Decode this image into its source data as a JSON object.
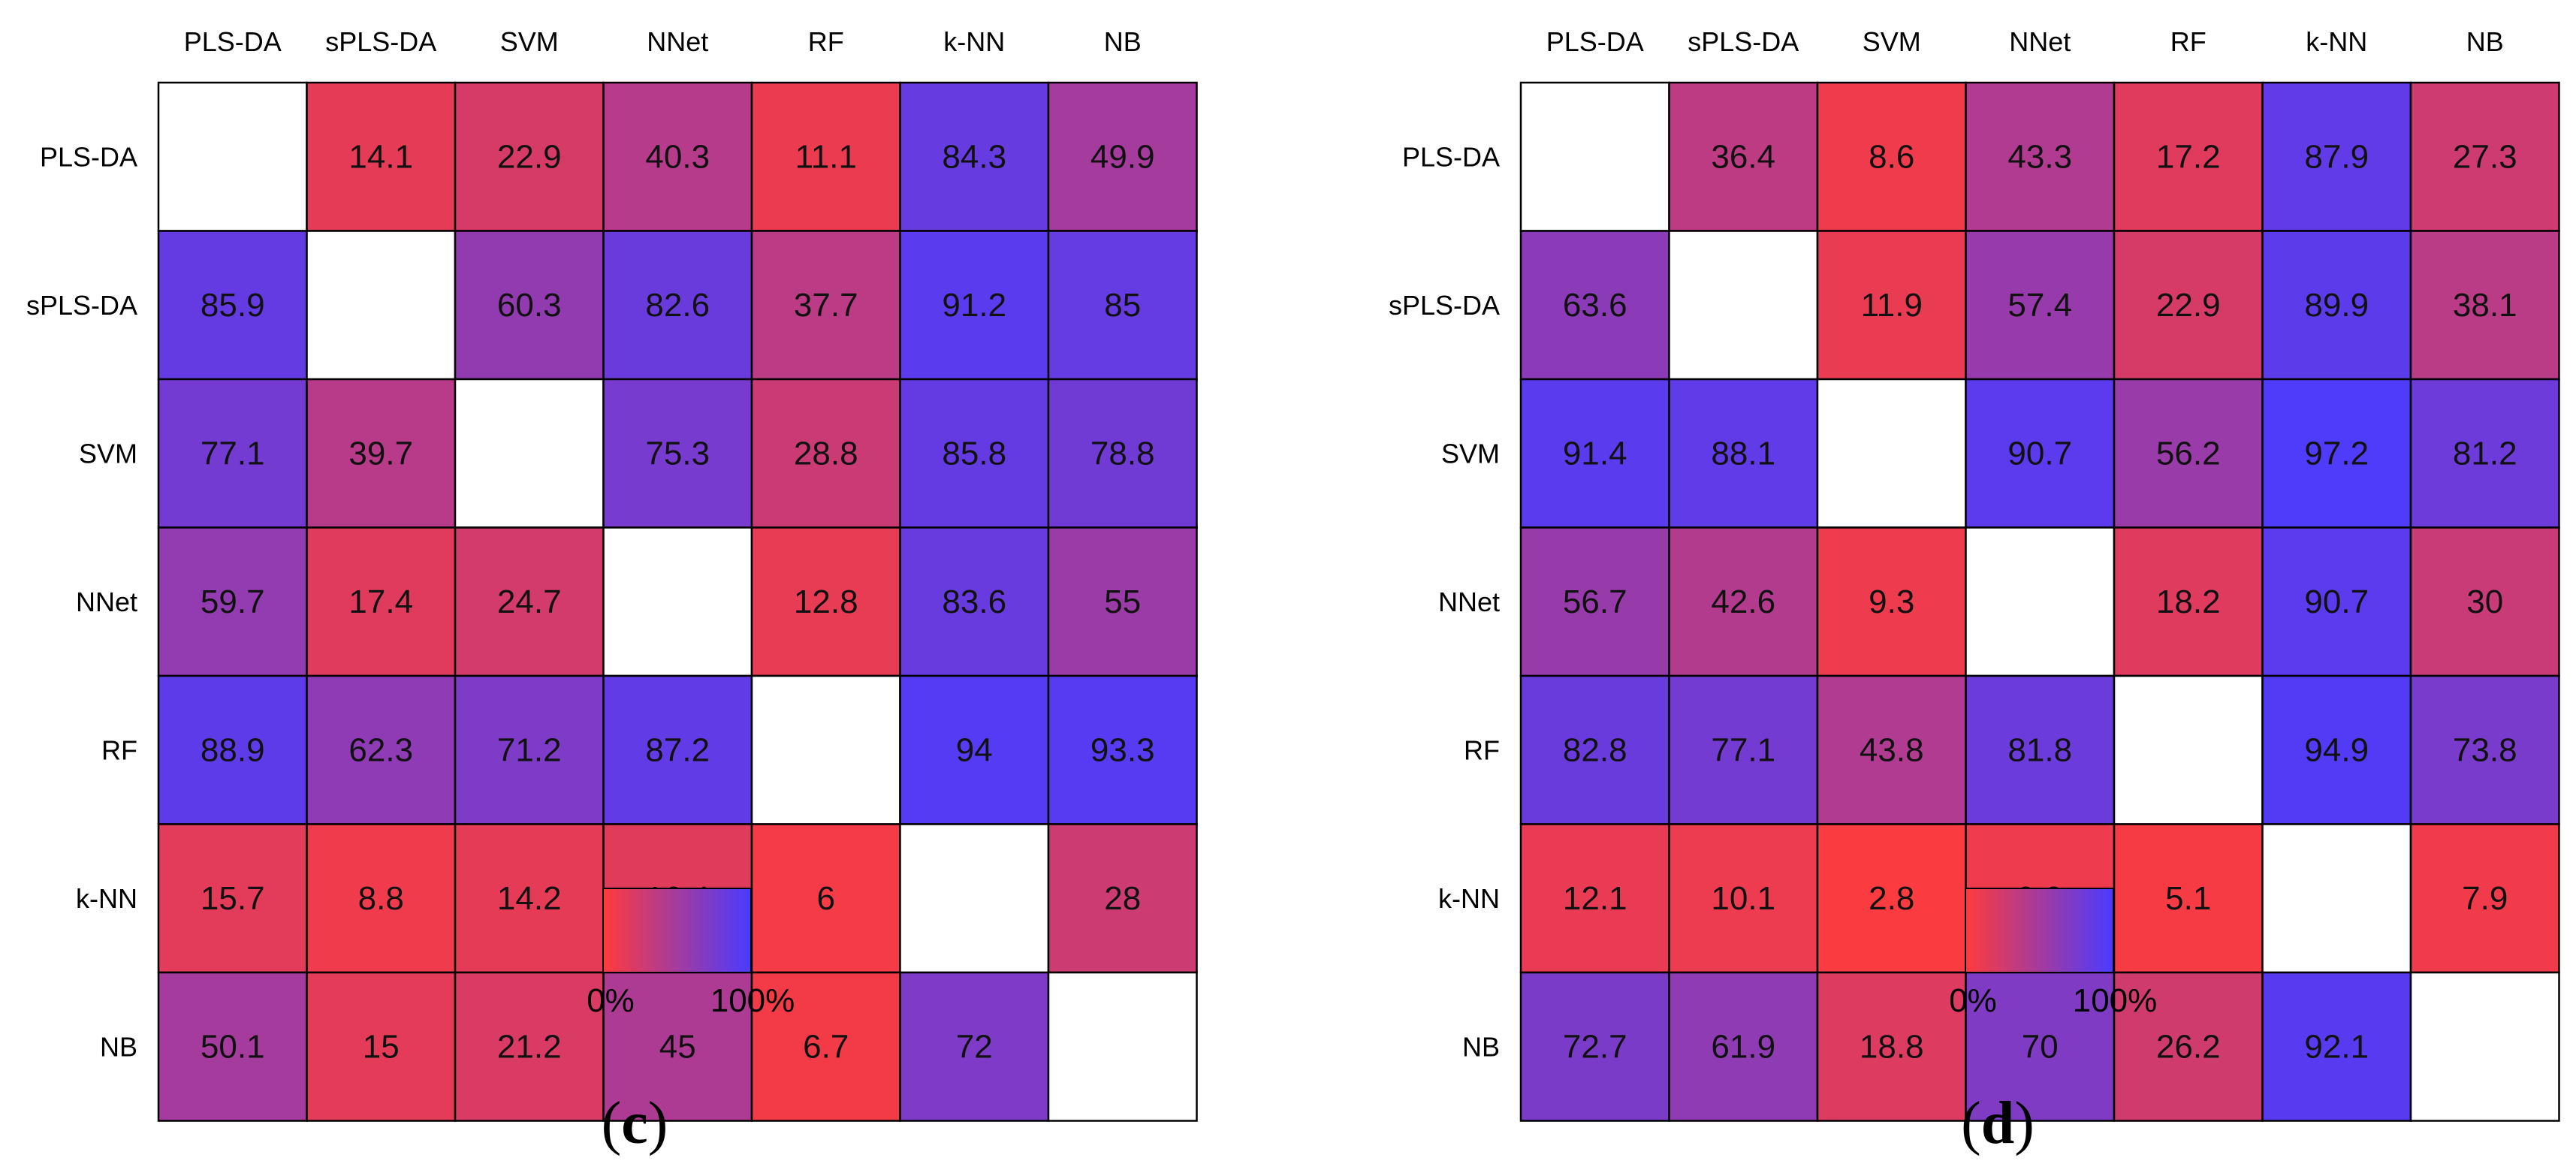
{
  "chart_data": [
    {
      "type": "heatmap",
      "panel_label": "(c)",
      "panel_letter": "c",
      "categories": [
        "PLS-DA",
        "sPLS-DA",
        "SVM",
        "NNet",
        "RF",
        "k-NN",
        "NB"
      ],
      "values": [
        [
          null,
          14.1,
          22.9,
          40.3,
          11.1,
          84.3,
          49.9
        ],
        [
          85.9,
          null,
          60.3,
          82.6,
          37.7,
          91.2,
          85
        ],
        [
          77.1,
          39.7,
          null,
          75.3,
          28.8,
          85.8,
          78.8
        ],
        [
          59.7,
          17.4,
          24.7,
          null,
          12.8,
          83.6,
          55
        ],
        [
          88.9,
          62.3,
          71.2,
          87.2,
          null,
          94,
          93.3
        ],
        [
          15.7,
          8.8,
          14.2,
          16.4,
          6,
          null,
          28
        ],
        [
          50.1,
          15,
          21.2,
          45,
          6.7,
          72,
          null
        ]
      ],
      "colorbar": {
        "min_label": "0%",
        "max_label": "100%",
        "low_color": "#ff3b3b",
        "high_color": "#4a3bff"
      }
    },
    {
      "type": "heatmap",
      "panel_label": "(d)",
      "panel_letter": "d",
      "categories": [
        "PLS-DA",
        "sPLS-DA",
        "SVM",
        "NNet",
        "RF",
        "k-NN",
        "NB"
      ],
      "values": [
        [
          null,
          36.4,
          8.6,
          43.3,
          17.2,
          87.9,
          27.3
        ],
        [
          63.6,
          null,
          11.9,
          57.4,
          22.9,
          89.9,
          38.1
        ],
        [
          91.4,
          88.1,
          null,
          90.7,
          56.2,
          97.2,
          81.2
        ],
        [
          56.7,
          42.6,
          9.3,
          null,
          18.2,
          90.7,
          30
        ],
        [
          82.8,
          77.1,
          43.8,
          81.8,
          null,
          94.9,
          73.8
        ],
        [
          12.1,
          10.1,
          2.8,
          9.3,
          5.1,
          null,
          7.9
        ],
        [
          72.7,
          61.9,
          18.8,
          70,
          26.2,
          92.1,
          null
        ]
      ],
      "colorbar": {
        "min_label": "0%",
        "max_label": "100%",
        "low_color": "#ff3b3b",
        "high_color": "#4a3bff"
      }
    }
  ]
}
